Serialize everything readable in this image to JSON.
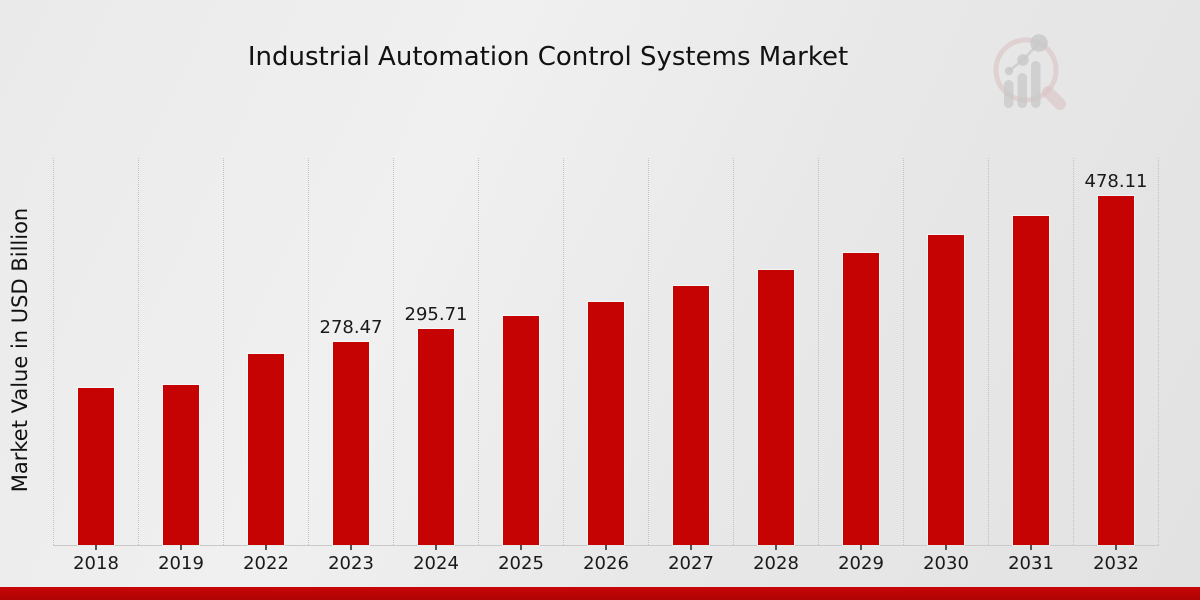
{
  "figure": {
    "title": "Industrial Automation Control Systems Market",
    "y_axis_label": "Market Value in USD Billion"
  },
  "logo": {
    "icon": "magnifier-bar-chart-watermark"
  },
  "colors": {
    "bar": "#c50303",
    "bar_edge": "#ffffff",
    "footer_band": "#b30404",
    "gridline": "#c2c2c2",
    "text": "#1a1a1a",
    "background": "#e9e9e9"
  },
  "chart_data": {
    "type": "bar",
    "title": "Industrial Automation Control Systems Market",
    "xlabel": "",
    "ylabel": "Market Value in USD Billion",
    "categories": [
      "2018",
      "2019",
      "2022",
      "2023",
      "2024",
      "2025",
      "2026",
      "2027",
      "2028",
      "2029",
      "2030",
      "2031",
      "2032"
    ],
    "values": [
      215.3,
      219.4,
      262.24,
      278.47,
      295.71,
      314.02,
      333.45,
      354.1,
      376.02,
      399.29,
      424.01,
      450.25,
      478.11
    ],
    "bar_labels": [
      "",
      "",
      "",
      "278.47",
      "295.71",
      "",
      "",
      "",
      "",
      "",
      "",
      "",
      "478.11"
    ],
    "ylim": [
      0,
      530
    ],
    "grid": "vertical-dotted-between-categories",
    "legend": "none",
    "bar_color": "#c50303"
  }
}
